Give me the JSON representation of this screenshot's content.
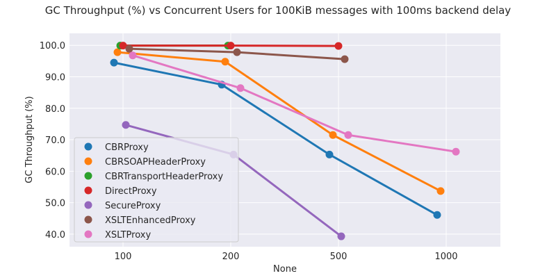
{
  "chart_data": {
    "type": "line",
    "title": "GC Throughput (%) vs Concurrent Users for 100KiB messages with 100ms backend delay",
    "xlabel": "None",
    "ylabel": "GC Throughput (%)",
    "categories": [
      "100",
      "200",
      "500",
      "1000"
    ],
    "ylim": [
      36.0,
      103.8
    ],
    "yticks": [
      "40.0",
      "50.0",
      "60.0",
      "70.0",
      "80.0",
      "90.0",
      "100.0"
    ],
    "grid": true,
    "legend_position": "lower-left",
    "series": [
      {
        "name": "CBRProxy",
        "color": "#1f77b4",
        "values": [
          94.5,
          87.5,
          65.3,
          46.1
        ]
      },
      {
        "name": "CBRSOAPHeaderProxy",
        "color": "#ff7f0e",
        "values": [
          97.8,
          94.8,
          71.5,
          53.7
        ]
      },
      {
        "name": "CBRTransportHeaderProxy",
        "color": "#2ca02c",
        "values": [
          99.9,
          99.9,
          null,
          null
        ]
      },
      {
        "name": "DirectProxy",
        "color": "#d62728",
        "values": [
          99.9,
          99.9,
          99.8,
          null
        ]
      },
      {
        "name": "SecureProxy",
        "color": "#9467bd",
        "values": [
          74.7,
          65.3,
          39.3,
          null
        ]
      },
      {
        "name": "XSLTEnhancedProxy",
        "color": "#8c564b",
        "values": [
          98.9,
          97.8,
          95.6,
          null
        ]
      },
      {
        "name": "XSLTProxy",
        "color": "#e377c2",
        "values": [
          96.8,
          86.4,
          71.5,
          66.2
        ]
      }
    ]
  }
}
